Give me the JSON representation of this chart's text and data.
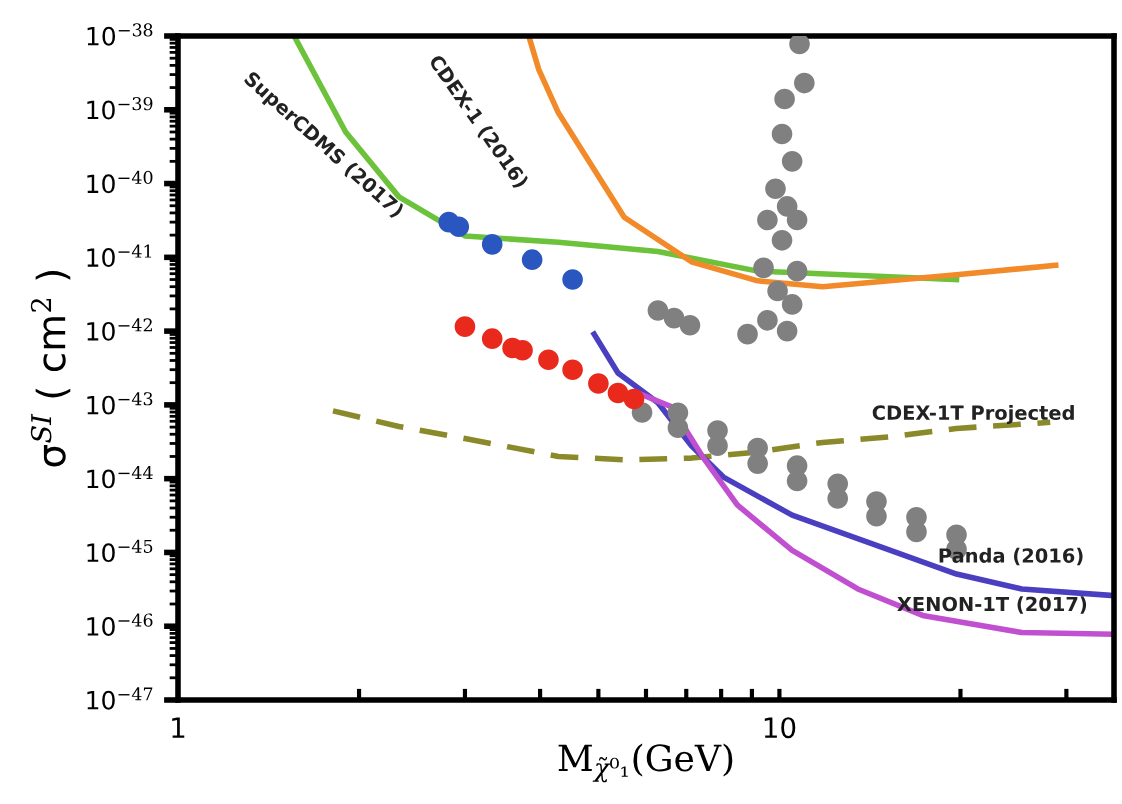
{
  "chart_data": {
    "type": "line",
    "log": "xy",
    "xlabel": "M$_{χ̃⁰₁}$(GeV)",
    "ylabel": "σ$^{SI}$ ( cm$^{2}$ )",
    "xlim": [
      1,
      36
    ],
    "ylim": [
      1e-47,
      1e-38
    ],
    "xticks": [
      1,
      {
        "value": 2,
        "label": null
      },
      {
        "value": 3,
        "label": null
      },
      {
        "value": 4,
        "label": null
      },
      {
        "value": 5,
        "label": null
      },
      {
        "value": 6,
        "label": null
      },
      {
        "value": 7,
        "label": null
      },
      {
        "value": 8,
        "label": null
      },
      {
        "value": 9,
        "label": null
      },
      10,
      {
        "value": 20,
        "label": null
      },
      {
        "value": 30,
        "label": null
      }
    ],
    "yticks": [
      {
        "value": 1e-47,
        "label": "10$^{−47}$"
      },
      {
        "value": 1e-46,
        "label": "10$^{−46}$"
      },
      {
        "value": 1e-45,
        "label": "10$^{−45}$"
      },
      {
        "value": 1e-44,
        "label": "10$^{−44}$"
      },
      {
        "value": 1e-43,
        "label": "10$^{−43}$"
      },
      {
        "value": 1e-42,
        "label": "10$^{−42}$"
      },
      {
        "value": 1e-41,
        "label": "10$^{−41}$"
      },
      {
        "value": 1e-40,
        "label": "10$^{−40}$"
      },
      {
        "value": 1e-39,
        "label": "10$^{−39}$"
      },
      {
        "value": 1e-38,
        "label": "10$^{−38}$"
      }
    ],
    "series": [
      {
        "name": "SuperCDMS (2017)",
        "color": "#6cc23a",
        "x": [
          1.56,
          1.9,
          2.33,
          3.0,
          4.29,
          6.28,
          9.2,
          19.7
        ],
        "values": [
          1e-38,
          5e-40,
          6.6e-41,
          1.95e-41,
          1.6e-41,
          1.2e-41,
          6.5e-42,
          5e-42
        ]
      },
      {
        "name": "CDEX-1 (2016)",
        "color": "#f28a2a",
        "x": [
          3.83,
          3.98,
          4.29,
          5.52,
          7.14,
          9.2,
          11.8,
          19.7,
          28.8
        ],
        "values": [
          1e-38,
          3.5e-39,
          9.1e-40,
          3.5e-41,
          8.7e-42,
          4.8e-42,
          4e-42,
          5.8e-42,
          7.8e-42
        ]
      },
      {
        "name": "CDEX-1T Projected",
        "line_style": "dashed",
        "color": "#8a8a2a",
        "x": [
          1.81,
          2.33,
          3.0,
          4.29,
          5.52,
          7.14,
          9.2,
          11.8,
          15.3,
          19.7,
          28.2
        ],
        "values": [
          8.3e-44,
          5.1e-44,
          3.5e-44,
          2e-44,
          1.8e-44,
          1.9e-44,
          2.3e-44,
          3.1e-44,
          3.7e-44,
          4.8e-44,
          5.8e-44
        ]
      },
      {
        "name": "Panda (2016)",
        "color": "#4a3fc0",
        "x": [
          4.92,
          5.39,
          6.28,
          7.14,
          8.07,
          10.5,
          15.3,
          19.7,
          25.3,
          36
        ],
        "values": [
          9.1e-43,
          2.7e-43,
          1.07e-43,
          2.8e-44,
          1.05e-44,
          3.2e-45,
          1.07e-45,
          5.1e-46,
          3.2e-46,
          2.6e-46
        ]
      },
      {
        "name": "XENON-1T (2017)",
        "color": "#c050d0",
        "x": [
          5.82,
          6.62,
          7.48,
          8.51,
          10.5,
          13.5,
          17.3,
          25.3,
          36
        ],
        "values": [
          1.45e-43,
          9.4e-44,
          1.9e-44,
          4.4e-45,
          1.07e-45,
          3.2e-46,
          1.4e-46,
          8.2e-47,
          7.8e-47
        ]
      },
      {
        "type": "scatter",
        "marker": "circle",
        "color": "#808080",
        "x": [
          10.8,
          11.0,
          10.2,
          10.1,
          10.5,
          9.85,
          10.3,
          9.55,
          10.7,
          10.1,
          9.41,
          10.7,
          9.93,
          10.5,
          9.55,
          10.3,
          8.85,
          6.28,
          6.68,
          7.1,
          6.78,
          7.89,
          9.2,
          10.7,
          12.5,
          14.5,
          16.9,
          19.7,
          5.91,
          6.78,
          7.89,
          9.2,
          10.7,
          12.5,
          14.5,
          16.9,
          19.7
        ],
        "values": [
          7.8e-39,
          2.3e-39,
          1.4e-39,
          4.7e-40,
          2e-40,
          8.5e-41,
          4.9e-41,
          3.2e-41,
          3.2e-41,
          1.7e-41,
          7.2e-42,
          6.5e-42,
          3.5e-42,
          2.3e-42,
          1.4e-42,
          1e-42,
          9.1e-43,
          1.9e-42,
          1.5e-42,
          1.2e-42,
          7.8e-44,
          4.5e-44,
          2.6e-44,
          1.5e-44,
          8.5e-45,
          4.9e-45,
          3e-45,
          1.74e-45,
          7.9e-44,
          4.9e-44,
          2.8e-44,
          1.6e-44,
          9.3e-45,
          5.4e-45,
          3.1e-45,
          1.9e-45,
          1.1e-45
        ]
      },
      {
        "type": "scatter",
        "marker": "circle",
        "color": "#2a56c0",
        "x": [
          2.82,
          2.93,
          3.33,
          3.88,
          4.53
        ],
        "values": [
          3e-41,
          2.6e-41,
          1.5e-41,
          9.3e-42,
          5e-42
        ]
      },
      {
        "type": "scatter",
        "marker": "circle",
        "color": "#e8291c",
        "x": [
          3.0,
          3.33,
          3.6,
          3.74,
          4.13,
          4.53,
          5.0,
          5.39,
          5.73
        ],
        "values": [
          1.15e-42,
          7.9e-43,
          5.9e-43,
          5.5e-43,
          4.1e-43,
          3e-43,
          1.95e-43,
          1.45e-43,
          1.2e-43
        ]
      }
    ]
  }
}
